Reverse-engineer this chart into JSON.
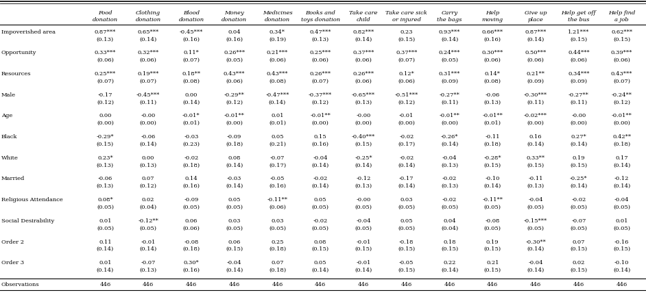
{
  "col_headers": [
    [
      "Food",
      "donation"
    ],
    [
      "Clothing",
      "donation"
    ],
    [
      "Blood",
      "donation"
    ],
    [
      "Money",
      "donation"
    ],
    [
      "Medicines",
      "donation"
    ],
    [
      "Books and",
      "toys donation"
    ],
    [
      "Take care",
      "child"
    ],
    [
      "Take care sick",
      "or injured"
    ],
    [
      "Carry",
      "the bags"
    ],
    [
      "Help",
      "moving"
    ],
    [
      "Give up",
      "place"
    ],
    [
      "Help get off",
      "the bus"
    ],
    [
      "Help find",
      "a job"
    ]
  ],
  "label_groups": [
    {
      "label": "Impoverished area",
      "coef": [
        "0.87***",
        "0.65***",
        "-0.45***",
        "0.04",
        "0.34*",
        "0.47***",
        "0.82***",
        "0.23",
        "0.93***",
        "0.66***",
        "0.87***",
        "1.21***",
        "0.62***"
      ],
      "se": [
        "(0.13)",
        "(0.14)",
        "(0.16)",
        "(0.16)",
        "(0.19)",
        "(0.13)",
        "(0.14)",
        "(0.15)",
        "(0.14)",
        "(0.16)",
        "(0.14)",
        "(0.15)",
        "(0.15)"
      ]
    },
    {
      "label": "Opportunity",
      "coef": [
        "0.33***",
        "0.32***",
        "0.11*",
        "0.26***",
        "0.21***",
        "0.25***",
        "0.37***",
        "0.37***",
        "0.24***",
        "0.30***",
        "0.50***",
        "0.44***",
        "0.39***"
      ],
      "se": [
        "(0.06)",
        "(0.06)",
        "(0.07)",
        "(0.05)",
        "(0.06)",
        "(0.06)",
        "(0.06)",
        "(0.07)",
        "(0.05)",
        "(0.06)",
        "(0.06)",
        "(0.06)",
        "(0.06)"
      ]
    },
    {
      "label": "Resources",
      "coef": [
        "0.25***",
        "0.19***",
        "0.18**",
        "0.43***",
        "0.43***",
        "0.26***",
        "0.26***",
        "0.12*",
        "0.31***",
        "0.14*",
        "0.21**",
        "0.34***",
        "0.43***"
      ],
      "se": [
        "(0.07)",
        "(0.07)",
        "(0.08)",
        "(0.06)",
        "(0.08)",
        "(0.07)",
        "(0.06)",
        "(0.06)",
        "(0.09)",
        "(0.08)",
        "(0.09)",
        "(0.09)",
        "(0.07)"
      ]
    },
    {
      "label": "Male",
      "coef": [
        "-0.17",
        "-0.45***",
        "0.00",
        "-0.29**",
        "-0.47***",
        "-0.37***",
        "-0.65***",
        "-0.51***",
        "-0.27**",
        "-0.06",
        "-0.30***",
        "-0.27**",
        "-0.24**"
      ],
      "se": [
        "(0.12)",
        "(0.11)",
        "(0.14)",
        "(0.12)",
        "(0.14)",
        "(0.12)",
        "(0.13)",
        "(0.12)",
        "(0.11)",
        "(0.13)",
        "(0.11)",
        "(0.11)",
        "(0.12)"
      ]
    },
    {
      "label": "Age",
      "coef": [
        "0.00",
        "-0.00",
        "-0.01*",
        "-0.01**",
        "0.01",
        "-0.01**",
        "-0.00",
        "-0.01",
        "-0.01**",
        "-0.01**",
        "-0.02***",
        "-0.00",
        "-0.01**"
      ],
      "se": [
        "(0.00)",
        "(0.00)",
        "(0.01)",
        "(0.00)",
        "(0.01)",
        "(0.00)",
        "(0.00)",
        "(0.00)",
        "(0.00)",
        "(0.01)",
        "(0.00)",
        "(0.00)",
        "(0.00)"
      ]
    },
    {
      "label": "Black",
      "coef": [
        "-0.29*",
        "-0.06",
        "-0.03",
        "-0.09",
        "0.05",
        "0.15",
        "-0.40***",
        "-0.02",
        "-0.26*",
        "-0.11",
        "0.16",
        "0.27*",
        "0.42**"
      ],
      "se": [
        "(0.15)",
        "(0.14)",
        "(0.23)",
        "(0.18)",
        "(0.21)",
        "(0.16)",
        "(0.15)",
        "(0.17)",
        "(0.14)",
        "(0.18)",
        "(0.14)",
        "(0.14)",
        "(0.18)"
      ]
    },
    {
      "label": "White",
      "coef": [
        "0.23*",
        "0.00",
        "-0.02",
        "0.08",
        "-0.07",
        "-0.04",
        "-0.25*",
        "-0.02",
        "-0.04",
        "-0.28*",
        "0.33**",
        "0.19",
        "0.17"
      ],
      "se": [
        "(0.13)",
        "(0.13)",
        "(0.18)",
        "(0.14)",
        "(0.17)",
        "(0.14)",
        "(0.14)",
        "(0.14)",
        "(0.13)",
        "(0.15)",
        "(0.15)",
        "(0.15)",
        "(0.14)"
      ]
    },
    {
      "label": "Married",
      "coef": [
        "-0.06",
        "0.07",
        "0.14",
        "-0.03",
        "-0.05",
        "-0.02",
        "-0.12",
        "-0.17",
        "-0.02",
        "-0.10",
        "-0.11",
        "-0.25*",
        "-0.12"
      ],
      "se": [
        "(0.13)",
        "(0.12)",
        "(0.16)",
        "(0.14)",
        "(0.16)",
        "(0.14)",
        "(0.13)",
        "(0.14)",
        "(0.13)",
        "(0.14)",
        "(0.13)",
        "(0.14)",
        "(0.14)"
      ]
    },
    {
      "label": "Religious Attendance",
      "coef": [
        "0.08*",
        "0.02",
        "-0.09",
        "0.05",
        "-0.11**",
        "0.05",
        "-0.00",
        "0.03",
        "-0.02",
        "-0.11**",
        "-0.04",
        "-0.02",
        "-0.04"
      ],
      "se": [
        "(0.05)",
        "(0.04)",
        "(0.05)",
        "(0.05)",
        "(0.06)",
        "(0.05)",
        "(0.05)",
        "(0.05)",
        "(0.05)",
        "(0.05)",
        "(0.05)",
        "(0.05)",
        "(0.05)"
      ]
    },
    {
      "label": "Social Desirability",
      "coef": [
        "0.01",
        "-0.12**",
        "0.06",
        "0.03",
        "0.03",
        "-0.02",
        "-0.04",
        "0.05",
        "0.04",
        "-0.08",
        "-0.15***",
        "-0.07",
        "0.01"
      ],
      "se": [
        "(0.05)",
        "(0.05)",
        "(0.06)",
        "(0.05)",
        "(0.05)",
        "(0.05)",
        "(0.05)",
        "(0.05)",
        "(0.04)",
        "(0.05)",
        "(0.05)",
        "(0.05)",
        "(0.05)"
      ]
    },
    {
      "label": "Order 2",
      "coef": [
        "0.11",
        "-0.01",
        "-0.08",
        "0.06",
        "0.25",
        "0.08",
        "-0.01",
        "-0.18",
        "0.18",
        "0.19",
        "-0.30**",
        "0.07",
        "-0.16"
      ],
      "se": [
        "(0.14)",
        "(0.14)",
        "(0.18)",
        "(0.15)",
        "(0.18)",
        "(0.15)",
        "(0.15)",
        "(0.15)",
        "(0.15)",
        "(0.15)",
        "(0.14)",
        "(0.15)",
        "(0.15)"
      ]
    },
    {
      "label": "Order 3",
      "coef": [
        "0.01",
        "-0.07",
        "0.30*",
        "-0.04",
        "0.07",
        "0.05",
        "-0.01",
        "-0.05",
        "0.22",
        "0.21",
        "-0.04",
        "0.02",
        "-0.10"
      ],
      "se": [
        "(0.14)",
        "(0.13)",
        "(0.16)",
        "(0.14)",
        "(0.18)",
        "(0.14)",
        "(0.14)",
        "(0.15)",
        "(0.14)",
        "(0.15)",
        "(0.14)",
        "(0.15)",
        "(0.14)"
      ]
    }
  ],
  "obs": [
    "446",
    "446",
    "446",
    "446",
    "446",
    "446",
    "446",
    "446",
    "446",
    "446",
    "446",
    "446",
    "446"
  ],
  "obs_label": "Observations"
}
